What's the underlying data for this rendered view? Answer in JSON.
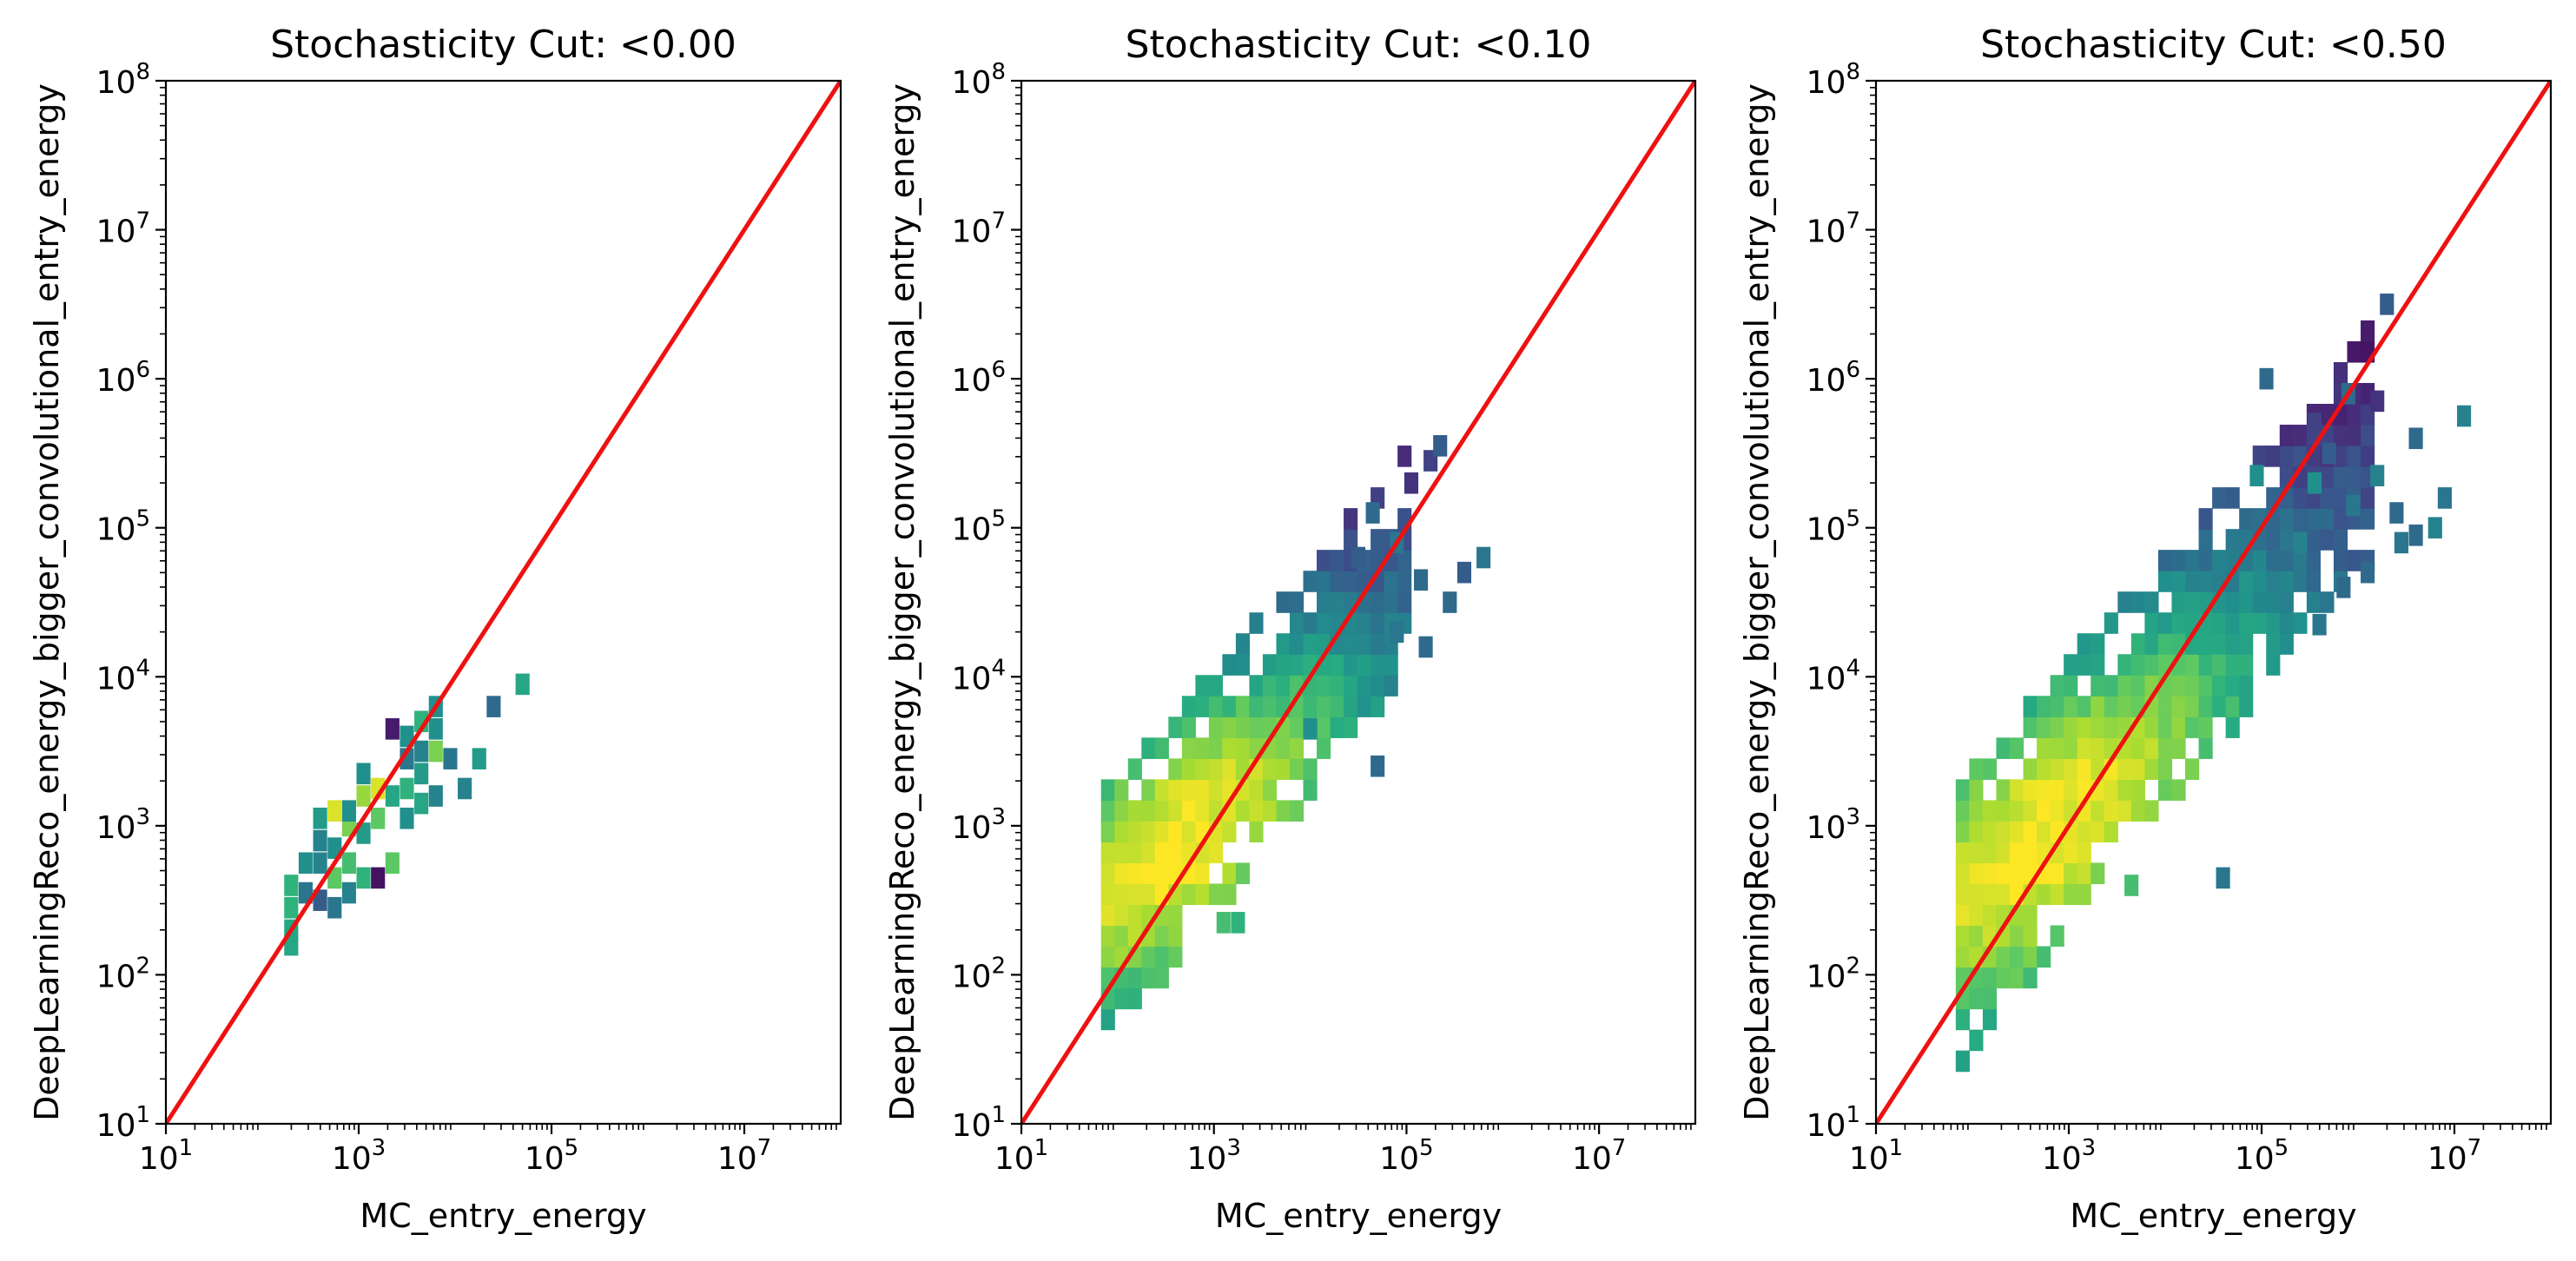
{
  "chart_data": [
    {
      "type": "heatmap",
      "title": "Stochasticity Cut: <0.00",
      "xlabel": "MC_entry_energy",
      "ylabel": "DeepLearningReco_energy_bigger_convolutional_entry_energy",
      "xscale": "log",
      "yscale": "log",
      "xlim_log10": [
        1,
        8
      ],
      "ylim_log10": [
        1,
        8
      ],
      "x_ticks": [
        {
          "base": "10",
          "exp": "1"
        },
        {
          "base": "10",
          "exp": "3"
        },
        {
          "base": "10",
          "exp": "5"
        },
        {
          "base": "10",
          "exp": "7"
        }
      ],
      "y_ticks": [
        {
          "base": "10",
          "exp": "1"
        },
        {
          "base": "10",
          "exp": "2"
        },
        {
          "base": "10",
          "exp": "3"
        },
        {
          "base": "10",
          "exp": "4"
        },
        {
          "base": "10",
          "exp": "5"
        },
        {
          "base": "10",
          "exp": "6"
        },
        {
          "base": "10",
          "exp": "7"
        },
        {
          "base": "10",
          "exp": "8"
        }
      ],
      "colormap": "viridis",
      "line": {
        "color": "#ee1111",
        "x_log10": [
          1,
          8
        ],
        "y_log10": [
          1,
          8
        ]
      },
      "bin_size_log10": 0.14,
      "cells": [
        [
          2.3,
          2.2,
          0.6
        ],
        [
          2.3,
          2.3,
          0.6
        ],
        [
          2.3,
          2.45,
          0.65
        ],
        [
          2.3,
          2.6,
          0.65
        ],
        [
          2.45,
          2.55,
          0.4
        ],
        [
          2.45,
          2.75,
          0.5
        ],
        [
          2.6,
          2.5,
          0.3
        ],
        [
          2.6,
          2.75,
          0.45
        ],
        [
          2.6,
          2.9,
          0.45
        ],
        [
          2.6,
          3.05,
          0.55
        ],
        [
          2.75,
          2.45,
          0.4
        ],
        [
          2.75,
          2.65,
          0.75
        ],
        [
          2.75,
          2.85,
          0.5
        ],
        [
          2.75,
          3.1,
          0.95
        ],
        [
          2.9,
          2.55,
          0.45
        ],
        [
          2.9,
          2.75,
          0.7
        ],
        [
          2.9,
          3.0,
          0.8
        ],
        [
          2.9,
          3.1,
          0.5
        ],
        [
          3.05,
          2.65,
          0.65
        ],
        [
          3.05,
          2.95,
          0.55
        ],
        [
          3.05,
          3.2,
          0.85
        ],
        [
          3.05,
          3.35,
          0.5
        ],
        [
          3.2,
          2.65,
          0.05
        ],
        [
          3.2,
          3.05,
          0.75
        ],
        [
          3.2,
          3.25,
          0.95
        ],
        [
          3.35,
          2.75,
          0.75
        ],
        [
          3.35,
          3.2,
          0.6
        ],
        [
          3.35,
          3.65,
          0.08
        ],
        [
          3.5,
          3.05,
          0.5
        ],
        [
          3.5,
          3.25,
          0.65
        ],
        [
          3.5,
          3.45,
          0.4
        ],
        [
          3.5,
          3.6,
          0.5
        ],
        [
          3.65,
          3.15,
          0.6
        ],
        [
          3.65,
          3.35,
          0.55
        ],
        [
          3.65,
          3.5,
          0.45
        ],
        [
          3.65,
          3.7,
          0.65
        ],
        [
          3.8,
          3.2,
          0.45
        ],
        [
          3.8,
          3.5,
          0.8
        ],
        [
          3.8,
          3.65,
          0.5
        ],
        [
          3.8,
          3.8,
          0.5
        ],
        [
          3.95,
          3.45,
          0.4
        ],
        [
          4.1,
          3.25,
          0.45
        ],
        [
          4.25,
          3.45,
          0.55
        ],
        [
          4.4,
          3.8,
          0.35
        ],
        [
          4.7,
          3.95,
          0.6
        ]
      ]
    },
    {
      "type": "heatmap",
      "title": "Stochasticity Cut: <0.10",
      "xlabel": "MC_entry_energy",
      "ylabel": "DeepLearningReco_energy_bigger_convolutional_entry_energy",
      "xscale": "log",
      "yscale": "log",
      "xlim_log10": [
        1,
        8
      ],
      "ylim_log10": [
        1,
        8
      ],
      "x_ticks": [
        {
          "base": "10",
          "exp": "1"
        },
        {
          "base": "10",
          "exp": "3"
        },
        {
          "base": "10",
          "exp": "5"
        },
        {
          "base": "10",
          "exp": "7"
        }
      ],
      "y_ticks": [
        {
          "base": "10",
          "exp": "1"
        },
        {
          "base": "10",
          "exp": "2"
        },
        {
          "base": "10",
          "exp": "3"
        },
        {
          "base": "10",
          "exp": "4"
        },
        {
          "base": "10",
          "exp": "5"
        },
        {
          "base": "10",
          "exp": "6"
        },
        {
          "base": "10",
          "exp": "7"
        },
        {
          "base": "10",
          "exp": "8"
        }
      ],
      "colormap": "viridis",
      "line": {
        "color": "#ee1111",
        "x_log10": [
          1,
          8
        ],
        "y_log10": [
          1,
          8
        ]
      },
      "bin_size_log10": 0.14,
      "blob": {
        "x_range": [
          1.9,
          5.0
        ],
        "lower": {
          "a": -0.08,
          "b": 0.82
        },
        "upper": {
          "a": 1.9,
          "b": 0.72
        },
        "peak": [
          2.6,
          2.85
        ],
        "spread": [
          0.85,
          0.55
        ],
        "rho": 0.65
      },
      "outliers": [
        [
          3.1,
          2.35,
          0.7
        ],
        [
          3.25,
          2.35,
          0.65
        ],
        [
          4.0,
          3.65,
          0.5
        ],
        [
          4.5,
          4.8,
          0.3
        ],
        [
          4.65,
          5.1,
          0.35
        ],
        [
          4.7,
          3.4,
          0.35
        ],
        [
          4.9,
          4.9,
          0.4
        ],
        [
          5.05,
          5.3,
          0.15
        ],
        [
          5.15,
          4.65,
          0.35
        ],
        [
          5.25,
          5.45,
          0.2
        ],
        [
          5.35,
          5.55,
          0.3
        ],
        [
          5.45,
          4.5,
          0.35
        ],
        [
          5.6,
          4.7,
          0.3
        ],
        [
          5.8,
          4.8,
          0.4
        ],
        [
          5.2,
          4.2,
          0.35
        ],
        [
          4.9,
          4.3,
          0.4
        ]
      ]
    },
    {
      "type": "heatmap",
      "title": "Stochasticity Cut: <0.50",
      "xlabel": "MC_entry_energy",
      "ylabel": "DeepLearningReco_energy_bigger_convolutional_entry_energy",
      "xscale": "log",
      "yscale": "log",
      "xlim_log10": [
        1,
        8
      ],
      "ylim_log10": [
        1,
        8
      ],
      "x_ticks": [
        {
          "base": "10",
          "exp": "1"
        },
        {
          "base": "10",
          "exp": "3"
        },
        {
          "base": "10",
          "exp": "5"
        },
        {
          "base": "10",
          "exp": "7"
        }
      ],
      "y_ticks": [
        {
          "base": "10",
          "exp": "1"
        },
        {
          "base": "10",
          "exp": "2"
        },
        {
          "base": "10",
          "exp": "3"
        },
        {
          "base": "10",
          "exp": "4"
        },
        {
          "base": "10",
          "exp": "5"
        },
        {
          "base": "10",
          "exp": "6"
        },
        {
          "base": "10",
          "exp": "7"
        },
        {
          "base": "10",
          "exp": "8"
        }
      ],
      "colormap": "viridis",
      "line": {
        "color": "#ee1111",
        "x_log10": [
          1,
          8
        ],
        "y_log10": [
          1,
          8
        ]
      },
      "bin_size_log10": 0.14,
      "blob": {
        "x_range": [
          1.9,
          6.1
        ],
        "lower": {
          "a": -0.1,
          "b": 0.8
        },
        "upper": {
          "a": 1.95,
          "b": 0.72
        },
        "peak": [
          2.7,
          2.9
        ],
        "spread": [
          1.0,
          0.65
        ],
        "rho": 0.7
      },
      "outliers": [
        [
          3.65,
          2.6,
          0.7
        ],
        [
          4.6,
          2.65,
          0.4
        ],
        [
          5.55,
          5.7,
          0.2
        ],
        [
          5.7,
          5.5,
          0.3
        ],
        [
          5.9,
          5.9,
          0.35
        ],
        [
          6.2,
          5.85,
          0.15
        ],
        [
          6.4,
          5.1,
          0.35
        ],
        [
          6.6,
          4.95,
          0.35
        ],
        [
          6.3,
          6.5,
          0.3
        ],
        [
          5.05,
          6.0,
          0.35
        ],
        [
          4.95,
          5.35,
          0.5
        ],
        [
          5.55,
          5.3,
          0.5
        ],
        [
          5.95,
          5.15,
          0.4
        ],
        [
          6.2,
          5.35,
          0.45
        ],
        [
          6.45,
          4.9,
          0.4
        ],
        [
          6.8,
          5.0,
          0.45
        ],
        [
          6.1,
          4.7,
          0.35
        ],
        [
          5.6,
          4.35,
          0.4
        ],
        [
          5.85,
          4.6,
          0.35
        ],
        [
          7.1,
          5.75,
          0.45
        ],
        [
          6.9,
          5.2,
          0.4
        ],
        [
          6.6,
          5.6,
          0.35
        ],
        [
          5.4,
          4.9,
          0.45
        ]
      ]
    }
  ]
}
